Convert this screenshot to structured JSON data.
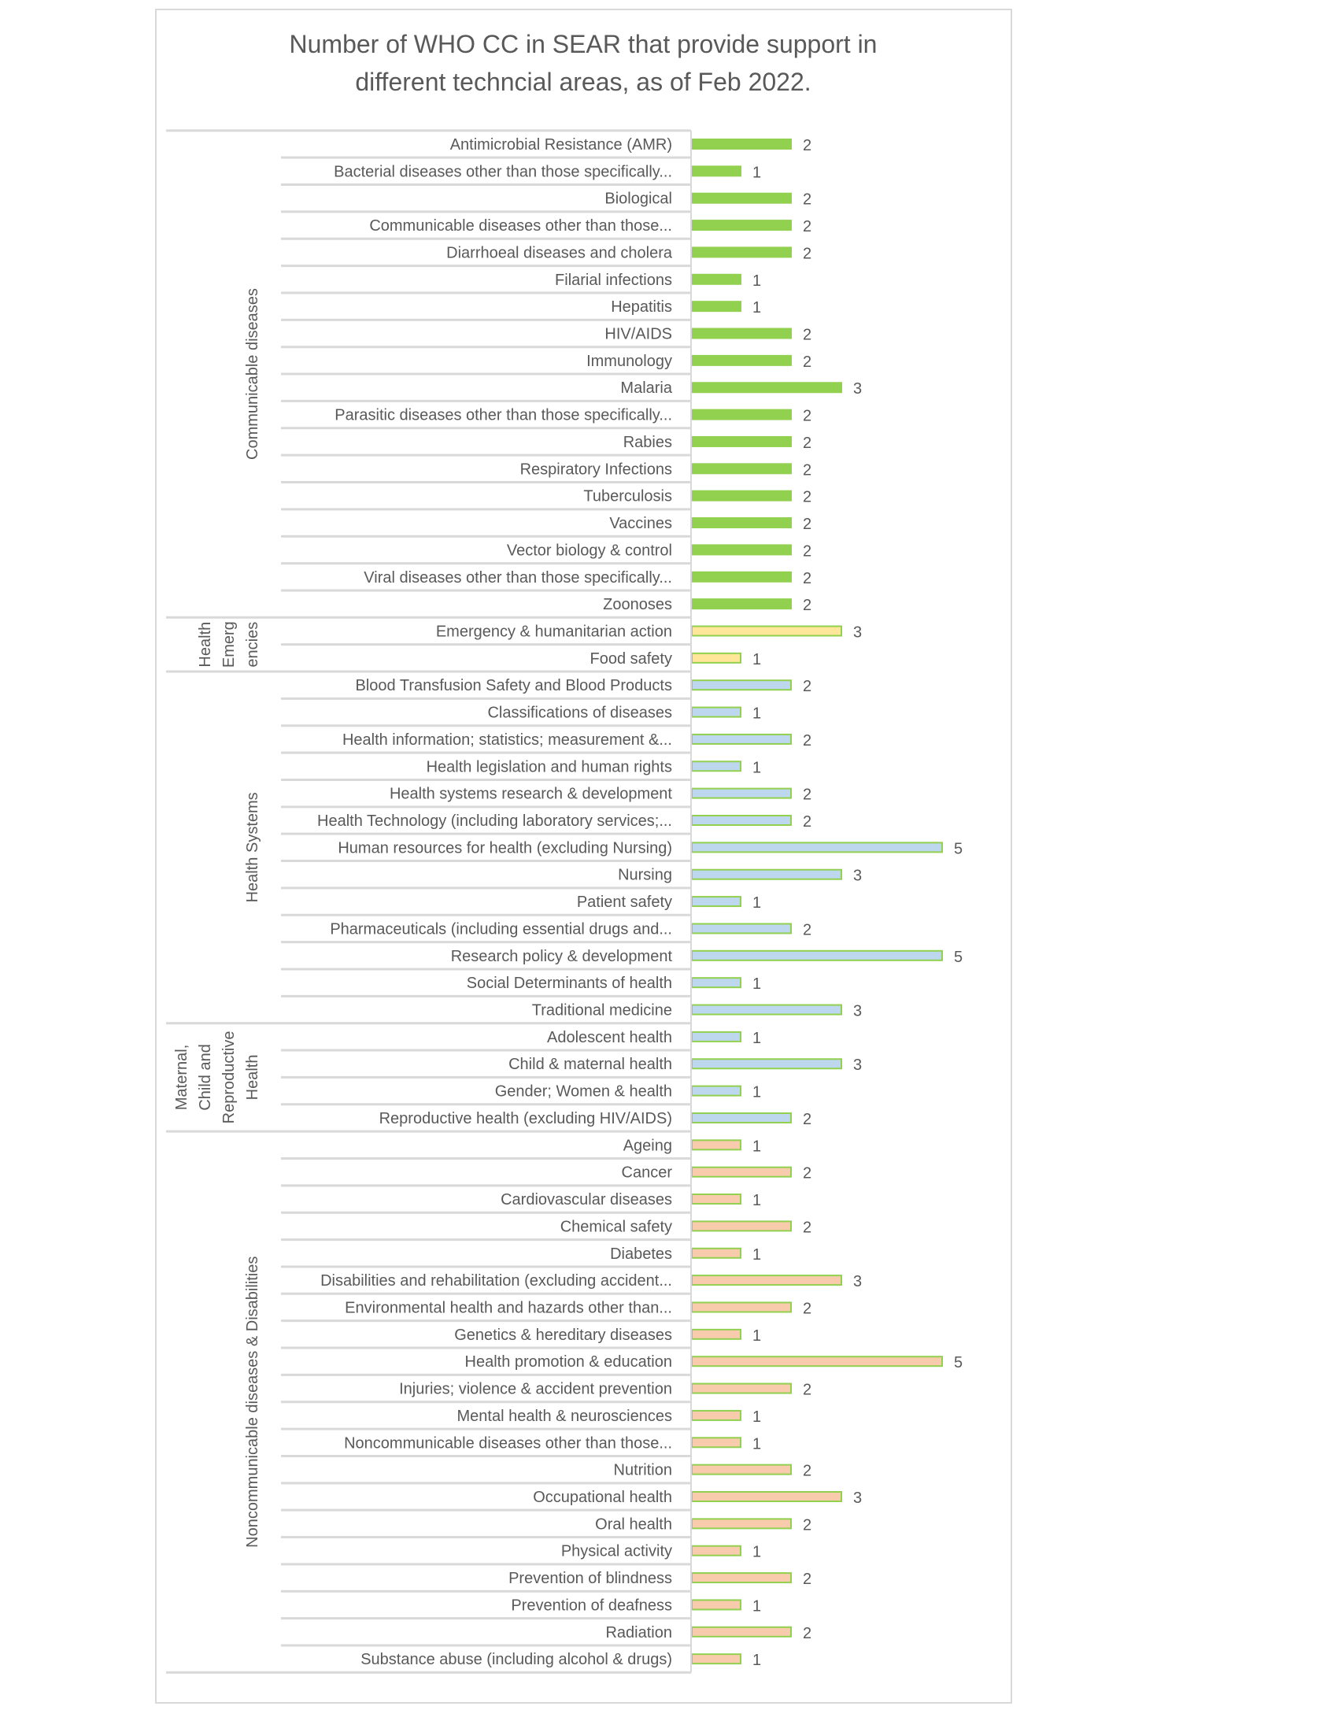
{
  "chart_data": {
    "type": "bar",
    "orientation": "horizontal",
    "title_lines": [
      "Number of WHO CC in SEAR that provide support in",
      "different techncial areas, as of Feb 2022."
    ],
    "xlim": [
      0,
      5
    ],
    "grid": false,
    "legend": "none",
    "colors": {
      "Communicable diseases": "#92d050",
      "Health Emergencies": "#ffe699",
      "Health Systems": "#bdd7ee",
      "Maternal, Child and Reproductive Health": "#bdd7ee",
      "Noncommunicable diseases & Disabilities": "#f8cbad",
      "bar_border": "#92d050"
    },
    "groups": [
      {
        "name": "Communicable diseases",
        "label_lines": [
          "Communicable diseases"
        ],
        "fill": "#92d050",
        "categories": [
          "Antimicrobial Resistance (AMR)",
          "Bacterial diseases other than those specifically...",
          "Biological",
          "Communicable diseases other than those...",
          "Diarrhoeal diseases and cholera",
          "Filarial infections",
          "Hepatitis",
          "HIV/AIDS",
          "Immunology",
          "Malaria",
          "Parasitic diseases other than those specifically...",
          "Rabies",
          "Respiratory Infections",
          "Tuberculosis",
          "Vaccines",
          "Vector biology & control",
          "Viral diseases other than those specifically...",
          "Zoonoses"
        ],
        "values": [
          2,
          1,
          2,
          2,
          2,
          1,
          1,
          2,
          2,
          3,
          2,
          2,
          2,
          2,
          2,
          2,
          2,
          2
        ]
      },
      {
        "name": "Health Emergencies",
        "label_lines": [
          "Health",
          "Emerg",
          "encies"
        ],
        "fill": "#ffe699",
        "categories": [
          "Emergency & humanitarian action",
          "Food safety"
        ],
        "values": [
          3,
          1
        ]
      },
      {
        "name": "Health Systems",
        "label_lines": [
          "Health Systems"
        ],
        "fill": "#bdd7ee",
        "categories": [
          "Blood Transfusion Safety and Blood Products",
          "Classifications of diseases",
          "Health information; statistics; measurement &...",
          "Health legislation and human rights",
          "Health systems research & development",
          "Health Technology (including laboratory services;...",
          "Human resources for health (excluding Nursing)",
          "Nursing",
          "Patient safety",
          "Pharmaceuticals (including essential drugs and...",
          "Research policy & development",
          "Social Determinants of health",
          "Traditional medicine"
        ],
        "values": [
          2,
          1,
          2,
          1,
          2,
          2,
          5,
          3,
          1,
          2,
          5,
          1,
          3
        ]
      },
      {
        "name": "Maternal, Child and Reproductive Health",
        "label_lines": [
          "Maternal,",
          "Child and",
          "Reproductive",
          "Health"
        ],
        "fill": "#bdd7ee",
        "categories": [
          "Adolescent health",
          "Child & maternal health",
          "Gender; Women & health",
          "Reproductive health (excluding HIV/AIDS)"
        ],
        "values": [
          1,
          3,
          1,
          2
        ]
      },
      {
        "name": "Noncommunicable diseases & Disabilities",
        "label_lines": [
          "Noncommunicable diseases & Disabilities"
        ],
        "fill": "#f8cbad",
        "categories": [
          "Ageing",
          "Cancer",
          "Cardiovascular diseases",
          "Chemical safety",
          "Diabetes",
          "Disabilities and rehabilitation (excluding accident...",
          "Environmental health and hazards other than...",
          "Genetics & hereditary diseases",
          "Health promotion & education",
          "Injuries; violence & accident prevention",
          "Mental health & neurosciences",
          "Noncommunicable diseases other than those...",
          "Nutrition",
          "Occupational health",
          "Oral health",
          "Physical activity",
          "Prevention of blindness",
          "Prevention of deafness",
          "Radiation",
          "Substance abuse (including alcohol & drugs)"
        ],
        "values": [
          1,
          2,
          1,
          2,
          1,
          3,
          2,
          1,
          5,
          2,
          1,
          1,
          2,
          3,
          2,
          1,
          2,
          1,
          2,
          1
        ]
      }
    ]
  }
}
